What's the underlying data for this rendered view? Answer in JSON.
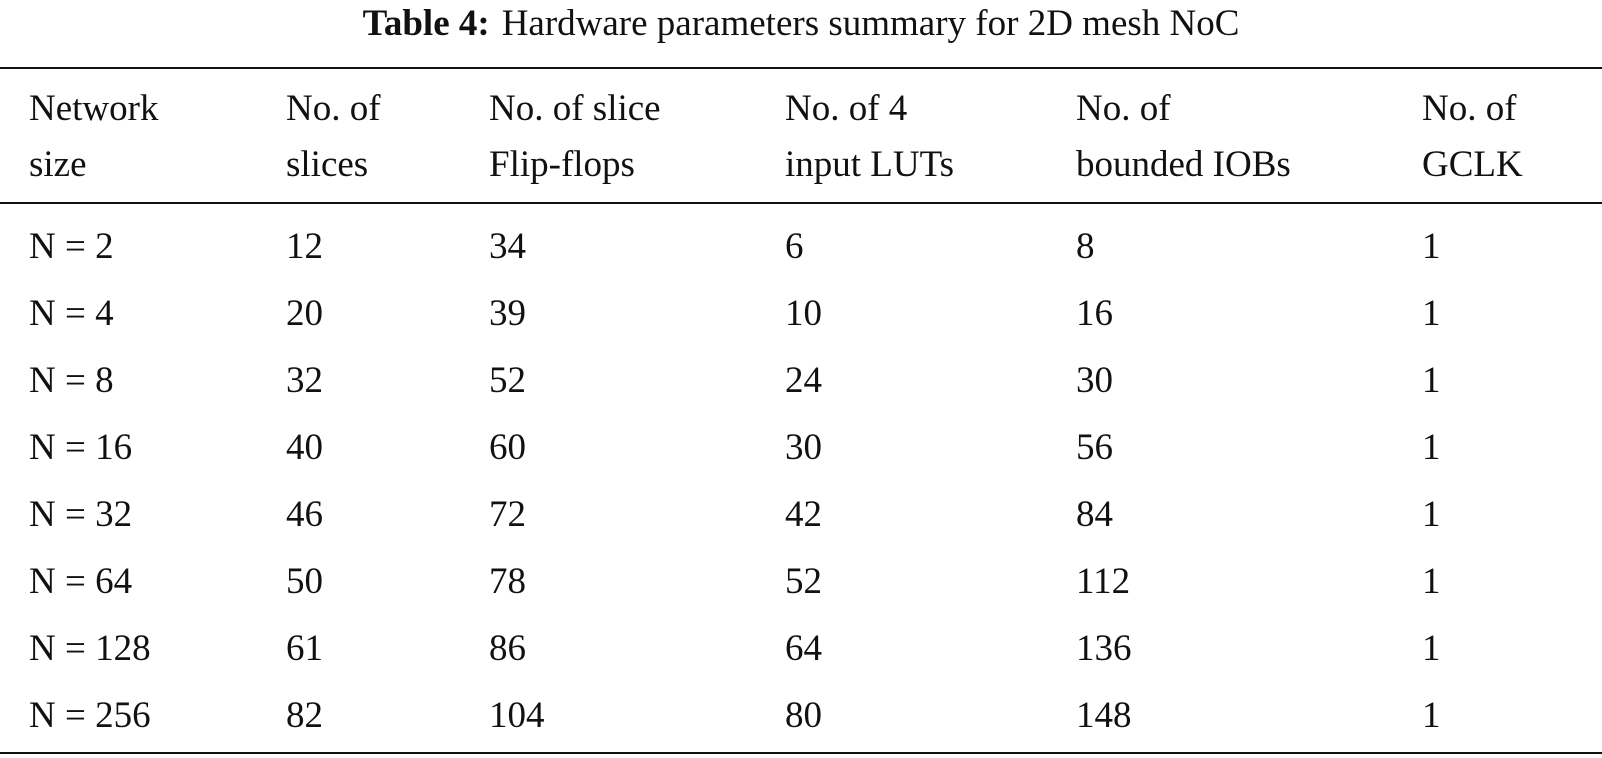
{
  "caption": {
    "label": "Table 4:",
    "title": "Hardware parameters summary for 2D mesh NoC"
  },
  "table": {
    "header": [
      [
        "Network",
        "size"
      ],
      [
        "No. of",
        "slices"
      ],
      [
        "No. of slice",
        "Flip-flops"
      ],
      [
        "No. of 4",
        "input LUTs"
      ],
      [
        "No. of",
        "bounded IOBs"
      ],
      [
        "No. of",
        "GCLK"
      ]
    ],
    "rows": [
      [
        "N = 2",
        12,
        34,
        6,
        8,
        1
      ],
      [
        "N = 4",
        20,
        39,
        10,
        16,
        1
      ],
      [
        "N = 8",
        32,
        52,
        24,
        30,
        1
      ],
      [
        "N = 16",
        40,
        60,
        30,
        56,
        1
      ],
      [
        "N = 32",
        46,
        72,
        42,
        84,
        1
      ],
      [
        "N = 64",
        50,
        78,
        52,
        112,
        1
      ],
      [
        "N = 128",
        61,
        86,
        64,
        136,
        1
      ],
      [
        "N = 256",
        82,
        104,
        80,
        148,
        1
      ]
    ]
  }
}
